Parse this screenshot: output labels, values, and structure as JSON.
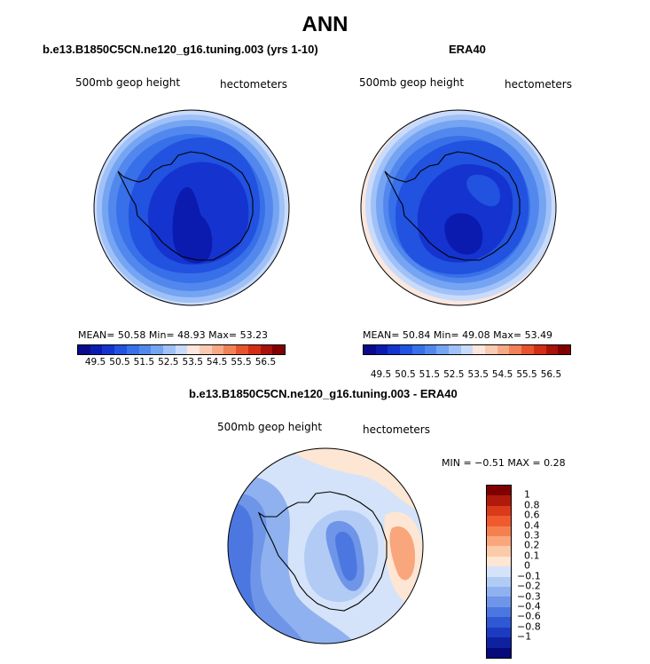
{
  "title": "ANN",
  "panels": {
    "left": {
      "title": "b.e13.B1850C5CN.ne120_g16.tuning.003 (yrs 1-10)",
      "variable": "500mb geop height",
      "units": "hectometers",
      "stats": "MEAN=   50.58   Min=   48.93   Max=   53.23"
    },
    "right": {
      "title": "ERA40",
      "variable": "500mb geop height",
      "units": "hectometers",
      "stats": "MEAN=   50.84   Min=   49.08   Max=   53.49"
    },
    "diff": {
      "title": "b.e13.B1850C5CN.ne120_g16.tuning.003 - ERA40",
      "variable": "500mb geop height",
      "units": "hectometers",
      "stats": "MIN =   −0.51  MAX =    0.28"
    }
  },
  "abs_colorbar": {
    "colors": [
      "#0a0a8c",
      "#0b1bb0",
      "#1533cf",
      "#2152e0",
      "#3770e8",
      "#5288ee",
      "#75a4f3",
      "#a0c1f7",
      "#c9dbfb",
      "#fbe7dd",
      "#f9cbb3",
      "#f6a987",
      "#f18158",
      "#e7532f",
      "#d42d15",
      "#a8120a",
      "#800000"
    ],
    "labels": [
      "49.5",
      "50.5",
      "51.5",
      "52.5",
      "53.5",
      "54.5",
      "55.5",
      "56.5"
    ]
  },
  "diff_colorbar": {
    "colors": [
      "#800000",
      "#b01a0c",
      "#d83a1a",
      "#ef5a2f",
      "#f5804f",
      "#f9a67c",
      "#fbcaa8",
      "#fde6d3",
      "#d4e3f9",
      "#b2cbf5",
      "#8fb1ef",
      "#6e95e8",
      "#4d77e0",
      "#2f58d3",
      "#1c3cc0",
      "#0e22a0",
      "#060a7a"
    ],
    "labels": [
      "1",
      "0.8",
      "0.6",
      "0.4",
      "0.3",
      "0.2",
      "0.1",
      "0",
      "−0.1",
      "−0.2",
      "−0.3",
      "−0.4",
      "−0.6",
      "−0.8",
      "−1"
    ]
  }
}
